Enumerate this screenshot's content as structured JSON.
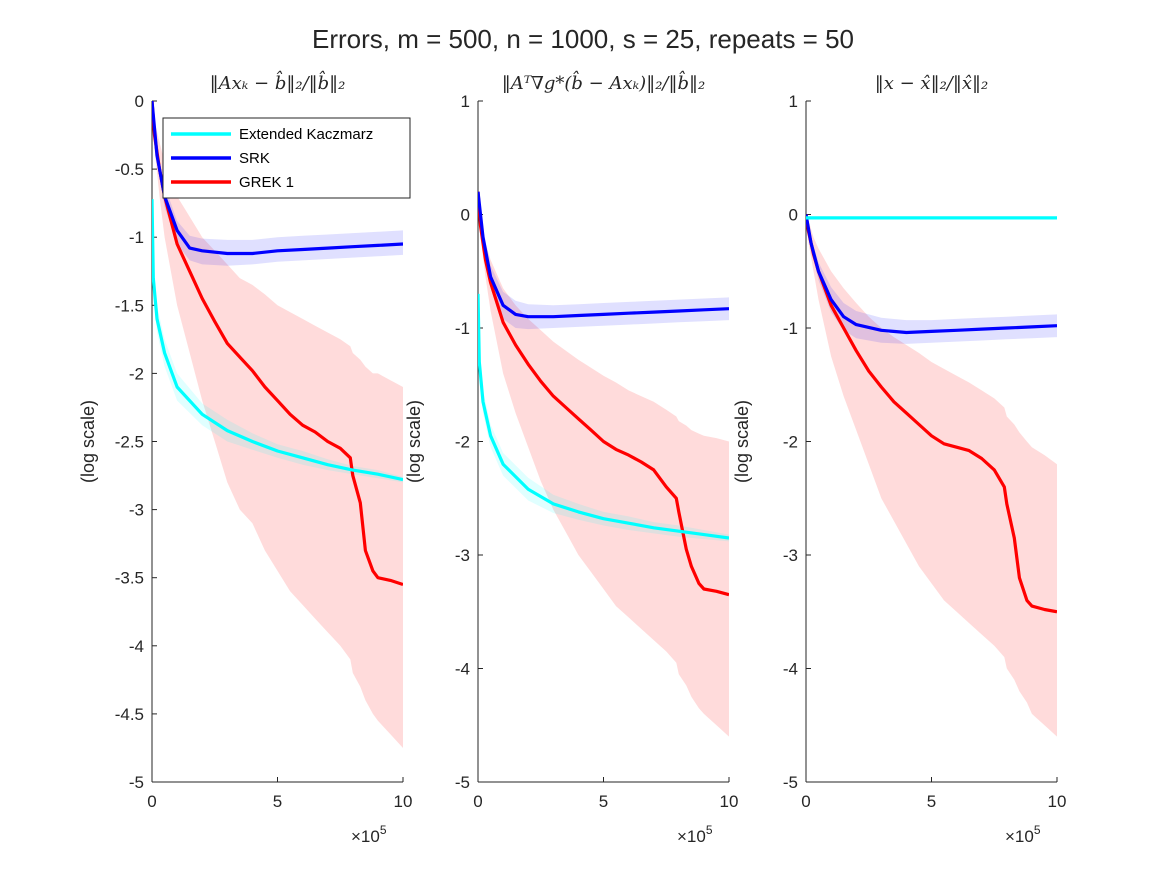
{
  "figure": {
    "suptitle": "Errors, m = 500, n = 1000, s = 25, repeats = 50"
  },
  "colors": {
    "Extended Kaczmarz": "#00ffff",
    "SRK": "#0000ff",
    "GREK 1": "#ff0000"
  },
  "legend": {
    "placement": "top-left of first panel",
    "entries": [
      "Extended Kaczmarz",
      "SRK",
      "GREK 1"
    ]
  },
  "chart_data": [
    {
      "type": "line",
      "title": "‖Axₖ − b̂‖₂/‖b̂‖₂",
      "xlabel": "",
      "ylabel": "(log scale)",
      "x_multiplier": "×10^5",
      "xlim": [
        0,
        10
      ],
      "ylim": [
        -5,
        0
      ],
      "xticks": [
        "0",
        "5",
        "10"
      ],
      "yticks": [
        "0",
        "-0.5",
        "-1",
        "-1.5",
        "-2",
        "-2.5",
        "-3",
        "-3.5",
        "-4",
        "-4.5",
        "-5"
      ],
      "series": [
        {
          "name": "Extended Kaczmarz",
          "x": [
            0,
            0.05,
            0.2,
            0.5,
            1,
            2,
            3,
            4,
            5,
            6,
            7,
            8,
            9,
            10
          ],
          "y": [
            -0.72,
            -1.3,
            -1.6,
            -1.85,
            -2.1,
            -2.3,
            -2.42,
            -2.5,
            -2.57,
            -2.62,
            -2.67,
            -2.71,
            -2.74,
            -2.78
          ],
          "lower": [
            -0.72,
            -1.4,
            -1.7,
            -1.95,
            -2.2,
            -2.38,
            -2.5,
            -2.56,
            -2.62,
            -2.67,
            -2.71,
            -2.74,
            -2.77,
            -2.8
          ],
          "upper": [
            -0.72,
            -1.2,
            -1.5,
            -1.75,
            -2.0,
            -2.22,
            -2.34,
            -2.44,
            -2.52,
            -2.57,
            -2.63,
            -2.68,
            -2.71,
            -2.76
          ]
        },
        {
          "name": "SRK",
          "x": [
            0,
            0.2,
            0.5,
            1,
            1.5,
            2,
            3,
            4,
            5,
            6,
            7,
            8,
            9,
            10
          ],
          "y": [
            0,
            -0.4,
            -0.7,
            -0.95,
            -1.08,
            -1.1,
            -1.12,
            -1.12,
            -1.1,
            -1.09,
            -1.08,
            -1.07,
            -1.06,
            -1.05
          ],
          "lower": [
            0,
            -0.45,
            -0.78,
            -1.05,
            -1.17,
            -1.2,
            -1.21,
            -1.2,
            -1.18,
            -1.17,
            -1.16,
            -1.15,
            -1.14,
            -1.13
          ],
          "upper": [
            0,
            -0.35,
            -0.62,
            -0.88,
            -0.99,
            -1.01,
            -1.02,
            -1.02,
            -1.0,
            -0.99,
            -0.98,
            -0.97,
            -0.96,
            -0.95
          ]
        },
        {
          "name": "GREK 1",
          "x": [
            0,
            0.1,
            0.3,
            0.5,
            1,
            1.5,
            2,
            2.5,
            3,
            3.5,
            4,
            4.5,
            5,
            5.5,
            6,
            6.5,
            7,
            7.5,
            7.9,
            8.0,
            8.3,
            8.5,
            8.8,
            9,
            9.5,
            10
          ],
          "y": [
            0,
            -0.25,
            -0.5,
            -0.7,
            -1.05,
            -1.25,
            -1.45,
            -1.62,
            -1.78,
            -1.88,
            -1.98,
            -2.1,
            -2.2,
            -2.3,
            -2.38,
            -2.43,
            -2.5,
            -2.55,
            -2.62,
            -2.75,
            -2.95,
            -3.3,
            -3.45,
            -3.5,
            -3.52,
            -3.55
          ],
          "lower": [
            0,
            -0.35,
            -0.7,
            -1.0,
            -1.5,
            -1.85,
            -2.2,
            -2.5,
            -2.8,
            -3.0,
            -3.1,
            -3.3,
            -3.45,
            -3.6,
            -3.7,
            -3.8,
            -3.9,
            -4.0,
            -4.1,
            -4.2,
            -4.3,
            -4.4,
            -4.5,
            -4.55,
            -4.65,
            -4.75
          ],
          "upper": [
            0,
            -0.15,
            -0.3,
            -0.45,
            -0.7,
            -0.85,
            -1.0,
            -1.1,
            -1.2,
            -1.3,
            -1.35,
            -1.42,
            -1.5,
            -1.55,
            -1.6,
            -1.65,
            -1.7,
            -1.75,
            -1.8,
            -1.85,
            -1.9,
            -1.95,
            -2.0,
            -2.0,
            -2.05,
            -2.1
          ]
        }
      ]
    },
    {
      "type": "line",
      "title": "‖Aᵀ∇g*(b̂ − Axₖ)‖₂/‖b̂‖₂",
      "xlabel": "",
      "ylabel": "(log scale)",
      "x_multiplier": "×10^5",
      "xlim": [
        0,
        10
      ],
      "ylim": [
        -5,
        1
      ],
      "xticks": [
        "0",
        "5",
        "10"
      ],
      "yticks": [
        "1",
        "0",
        "-1",
        "-2",
        "-3",
        "-4",
        "-5"
      ],
      "series": [
        {
          "name": "Extended Kaczmarz",
          "x": [
            0,
            0.05,
            0.2,
            0.5,
            1,
            2,
            3,
            4,
            5,
            6,
            7,
            8,
            9,
            10
          ],
          "y": [
            -0.7,
            -1.3,
            -1.65,
            -1.95,
            -2.2,
            -2.42,
            -2.55,
            -2.62,
            -2.68,
            -2.72,
            -2.76,
            -2.79,
            -2.82,
            -2.85
          ],
          "lower": [
            -0.7,
            -1.4,
            -1.75,
            -2.05,
            -2.3,
            -2.52,
            -2.63,
            -2.69,
            -2.74,
            -2.78,
            -2.81,
            -2.84,
            -2.86,
            -2.88
          ],
          "upper": [
            -0.7,
            -1.2,
            -1.55,
            -1.85,
            -2.1,
            -2.32,
            -2.47,
            -2.55,
            -2.62,
            -2.66,
            -2.71,
            -2.74,
            -2.78,
            -2.82
          ]
        },
        {
          "name": "SRK",
          "x": [
            0,
            0.2,
            0.5,
            1,
            1.5,
            2,
            3,
            4,
            5,
            6,
            7,
            8,
            9,
            10
          ],
          "y": [
            0.2,
            -0.2,
            -0.55,
            -0.8,
            -0.88,
            -0.9,
            -0.9,
            -0.89,
            -0.88,
            -0.87,
            -0.86,
            -0.85,
            -0.84,
            -0.83
          ],
          "lower": [
            0.2,
            -0.28,
            -0.65,
            -0.92,
            -1.0,
            -1.01,
            -1.0,
            -0.99,
            -0.98,
            -0.97,
            -0.96,
            -0.95,
            -0.94,
            -0.93
          ],
          "upper": [
            0.2,
            -0.12,
            -0.45,
            -0.68,
            -0.76,
            -0.79,
            -0.8,
            -0.79,
            -0.78,
            -0.77,
            -0.76,
            -0.75,
            -0.74,
            -0.73
          ]
        },
        {
          "name": "GREK 1",
          "x": [
            0,
            0.1,
            0.3,
            0.5,
            1,
            1.5,
            2,
            2.5,
            3,
            3.5,
            4,
            4.5,
            5,
            5.5,
            6,
            6.5,
            7,
            7.5,
            7.9,
            8.0,
            8.3,
            8.5,
            8.8,
            9,
            9.5,
            10
          ],
          "y": [
            0.2,
            -0.1,
            -0.4,
            -0.6,
            -0.95,
            -1.15,
            -1.32,
            -1.47,
            -1.6,
            -1.7,
            -1.8,
            -1.9,
            -2.0,
            -2.07,
            -2.12,
            -2.18,
            -2.25,
            -2.4,
            -2.5,
            -2.62,
            -2.95,
            -3.1,
            -3.25,
            -3.3,
            -3.32,
            -3.35
          ],
          "lower": [
            0.2,
            -0.2,
            -0.55,
            -0.85,
            -1.4,
            -1.75,
            -2.05,
            -2.35,
            -2.6,
            -2.8,
            -3.0,
            -3.15,
            -3.3,
            -3.45,
            -3.55,
            -3.65,
            -3.75,
            -3.85,
            -3.95,
            -4.05,
            -4.15,
            -4.25,
            -4.35,
            -4.4,
            -4.5,
            -4.6
          ],
          "upper": [
            0.2,
            0.0,
            -0.25,
            -0.4,
            -0.65,
            -0.8,
            -0.92,
            -1.02,
            -1.12,
            -1.2,
            -1.28,
            -1.35,
            -1.42,
            -1.48,
            -1.55,
            -1.6,
            -1.65,
            -1.72,
            -1.78,
            -1.82,
            -1.86,
            -1.9,
            -1.93,
            -1.95,
            -1.97,
            -2.0
          ]
        }
      ]
    },
    {
      "type": "line",
      "title": "‖x − x̂‖₂/‖x̂‖₂",
      "xlabel": "",
      "ylabel": "(log scale)",
      "x_multiplier": "×10^5",
      "xlim": [
        0,
        10
      ],
      "ylim": [
        -5,
        1
      ],
      "xticks": [
        "0",
        "5",
        "10"
      ],
      "yticks": [
        "1",
        "0",
        "-1",
        "-2",
        "-3",
        "-4",
        "-5"
      ],
      "series": [
        {
          "name": "Extended Kaczmarz",
          "x": [
            0,
            1,
            2,
            3,
            4,
            5,
            6,
            7,
            8,
            9,
            10
          ],
          "y": [
            -0.03,
            -0.03,
            -0.03,
            -0.03,
            -0.03,
            -0.03,
            -0.03,
            -0.03,
            -0.03,
            -0.03,
            -0.03
          ],
          "lower": [
            -0.04,
            -0.04,
            -0.04,
            -0.04,
            -0.04,
            -0.04,
            -0.04,
            -0.04,
            -0.04,
            -0.04,
            -0.04
          ],
          "upper": [
            -0.02,
            -0.02,
            -0.02,
            -0.02,
            -0.02,
            -0.02,
            -0.02,
            -0.02,
            -0.02,
            -0.02,
            -0.02
          ]
        },
        {
          "name": "SRK",
          "x": [
            0,
            0.2,
            0.5,
            1,
            1.5,
            2,
            3,
            4,
            5,
            6,
            7,
            8,
            9,
            10
          ],
          "y": [
            0,
            -0.25,
            -0.5,
            -0.75,
            -0.9,
            -0.97,
            -1.02,
            -1.04,
            -1.03,
            -1.02,
            -1.01,
            -1.0,
            -0.99,
            -0.98
          ],
          "lower": [
            0,
            -0.3,
            -0.58,
            -0.86,
            -1.02,
            -1.09,
            -1.13,
            -1.14,
            -1.13,
            -1.12,
            -1.11,
            -1.1,
            -1.09,
            -1.08
          ],
          "upper": [
            0,
            -0.2,
            -0.42,
            -0.64,
            -0.78,
            -0.85,
            -0.91,
            -0.93,
            -0.93,
            -0.92,
            -0.91,
            -0.9,
            -0.89,
            -0.88
          ]
        },
        {
          "name": "GREK 1",
          "x": [
            0,
            0.1,
            0.3,
            0.5,
            1,
            1.5,
            2,
            2.5,
            3,
            3.5,
            4,
            4.5,
            5,
            5.5,
            6,
            6.5,
            7,
            7.5,
            7.9,
            8.0,
            8.3,
            8.5,
            8.8,
            9,
            9.5,
            10
          ],
          "y": [
            0,
            -0.15,
            -0.35,
            -0.5,
            -0.8,
            -1.0,
            -1.2,
            -1.38,
            -1.52,
            -1.65,
            -1.75,
            -1.85,
            -1.95,
            -2.02,
            -2.05,
            -2.08,
            -2.15,
            -2.25,
            -2.4,
            -2.55,
            -2.85,
            -3.2,
            -3.4,
            -3.45,
            -3.48,
            -3.5
          ],
          "lower": [
            0,
            -0.25,
            -0.5,
            -0.75,
            -1.25,
            -1.6,
            -1.9,
            -2.2,
            -2.5,
            -2.7,
            -2.9,
            -3.1,
            -3.25,
            -3.4,
            -3.5,
            -3.6,
            -3.7,
            -3.8,
            -3.9,
            -4.0,
            -4.1,
            -4.2,
            -4.3,
            -4.4,
            -4.5,
            -4.6
          ],
          "upper": [
            0,
            -0.05,
            -0.2,
            -0.3,
            -0.5,
            -0.65,
            -0.78,
            -0.9,
            -1.0,
            -1.08,
            -1.15,
            -1.22,
            -1.3,
            -1.36,
            -1.42,
            -1.48,
            -1.55,
            -1.62,
            -1.7,
            -1.78,
            -1.85,
            -1.92,
            -2.0,
            -2.05,
            -2.12,
            -2.2
          ]
        }
      ]
    }
  ]
}
